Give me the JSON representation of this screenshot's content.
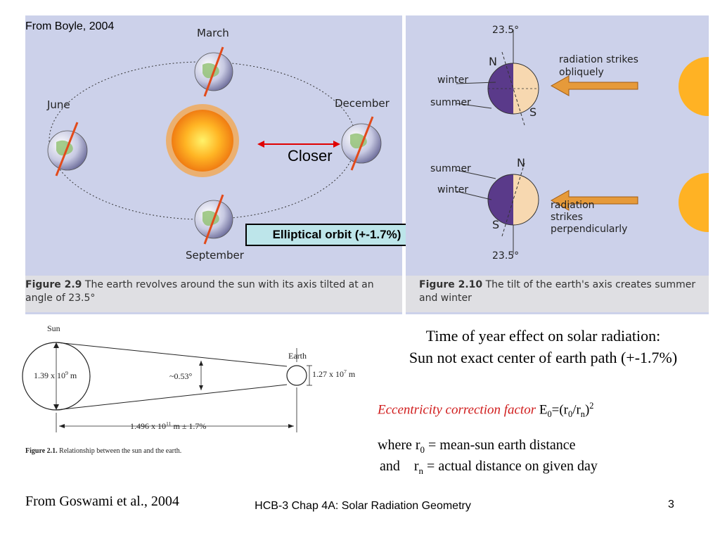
{
  "slide": {
    "source_top": "From Boyle, 2004",
    "source_bottom": "From Goswami et al., 2004",
    "title_line1": "Time of year effect on solar radiation:",
    "title_line2": "Sun not exact center of earth path (+-1.7%)",
    "ecc_label": "Eccentricity correction factor",
    "ecc_formula_a": "E",
    "ecc_formula_b": "0",
    "ecc_formula_c": "=(r",
    "ecc_formula_d": "0",
    "ecc_formula_e": "/r",
    "ecc_formula_f": "n",
    "ecc_formula_g": ")",
    "ecc_formula_h": "2",
    "where1_a": "where r",
    "where1_b": "0",
    "where1_c": " = mean-sun earth distance",
    "where2_a": "and    r",
    "where2_b": "n",
    "where2_c": " = actual distance on given day",
    "footer": "HCB-3 Chap 4A: Solar Radiation Geometry",
    "page_number": "3",
    "accent_red": "#d01c1c"
  },
  "figure_29": {
    "labels": {
      "march": "March",
      "june": "June",
      "december": "December",
      "september": "September"
    },
    "closer": "Closer",
    "orbit_box": "Elliptical orbit (+-1.7%)",
    "caption_bold": "Figure 2.9",
    "caption_text": "The earth revolves around the sun with its axis tilted at an angle of 23.5°"
  },
  "figure_210": {
    "angle_top": "23.5°",
    "angle_bottom": "23.5°",
    "n": "N",
    "s": "S",
    "winter": "winter",
    "summer": "summer",
    "oblique_1": "radiation strikes",
    "oblique_2": "obliquely",
    "perp_1": "radiation",
    "perp_2": "strikes",
    "perp_3": "perpendicularly",
    "caption_bold": "Figure 2.10",
    "caption_text": "The tilt of the earth's axis creates summer and winter"
  },
  "figure_21": {
    "sun": "Sun",
    "earth": "Earth",
    "sun_diam": "1.39 x 10",
    "sun_exp": "9",
    "unit_m": " m",
    "angle": "~0.53°",
    "earth_diam": "1.27 x 10",
    "earth_exp": "7",
    "distance": "1.496 x 10",
    "distance_exp": "11",
    "distance_tail": " m  ± 1.7%",
    "caption_bold": "Figure 2.1.",
    "caption_text": "Relationship between the sun and the earth."
  }
}
